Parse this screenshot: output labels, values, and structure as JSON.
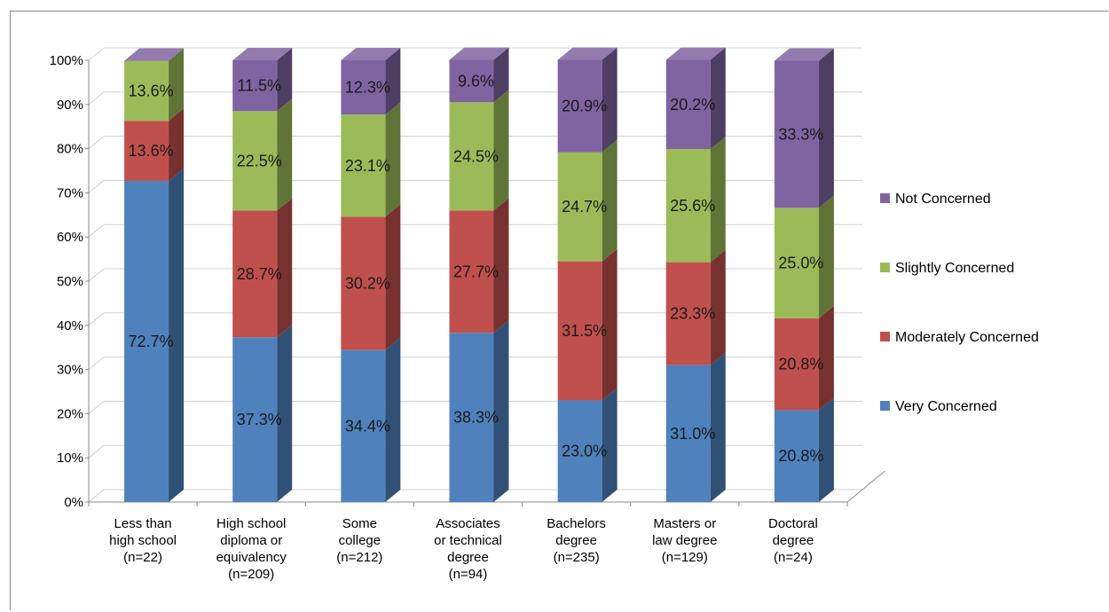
{
  "chart_data": {
    "type": "bar",
    "stacked": true,
    "percent_stacked": true,
    "three_d": true,
    "title": "",
    "xlabel": "",
    "ylabel": "",
    "ylim": [
      0,
      100
    ],
    "y_ticks": [
      "0%",
      "10%",
      "20%",
      "30%",
      "40%",
      "50%",
      "60%",
      "70%",
      "80%",
      "90%",
      "100%"
    ],
    "grid": true,
    "legend_position": "right",
    "categories": [
      [
        "Less than",
        "high school",
        "(n=22)"
      ],
      [
        "High school",
        "diploma or",
        "equivalency",
        "(n=209)"
      ],
      [
        "Some",
        "college",
        "(n=212)"
      ],
      [
        "Associates",
        "or technical",
        "degree",
        "(n=94)"
      ],
      [
        "Bachelors",
        "degree",
        "(n=235)"
      ],
      [
        "Masters or",
        "law degree",
        "(n=129)"
      ],
      [
        "Doctoral",
        "degree",
        "(n=24)"
      ]
    ],
    "series": [
      {
        "name": "Very Concerned",
        "color": "#4F81BD",
        "values": [
          72.7,
          37.3,
          34.4,
          38.3,
          23.0,
          31.0,
          20.8
        ],
        "labels": [
          "72.7%",
          "37.3%",
          "34.4%",
          "38.3%",
          "23.0%",
          "31.0%",
          "20.8%"
        ]
      },
      {
        "name": "Moderately Concerned",
        "color": "#C0504D",
        "values": [
          13.6,
          28.7,
          30.2,
          27.7,
          31.5,
          23.3,
          20.8
        ],
        "labels": [
          "13.6%",
          "28.7%",
          "30.2%",
          "27.7%",
          "31.5%",
          "23.3%",
          "20.8%"
        ]
      },
      {
        "name": "Slightly Concerned",
        "color": "#9BBB59",
        "values": [
          13.6,
          22.5,
          23.1,
          24.5,
          24.7,
          25.6,
          25.0
        ],
        "labels": [
          "13.6%",
          "22.5%",
          "23.1%",
          "24.5%",
          "24.7%",
          "25.6%",
          "25.0%"
        ]
      },
      {
        "name": "Not Concerned",
        "color": "#8064A2",
        "values": [
          0,
          11.5,
          12.3,
          9.6,
          20.9,
          20.2,
          33.3
        ],
        "labels": [
          "",
          "11.5%",
          "12.3%",
          "9.6%",
          "20.9%",
          "20.2%",
          "33.3%"
        ]
      }
    ],
    "legend_order": [
      "Not Concerned",
      "Slightly Concerned",
      "Moderately Concerned",
      "Very Concerned"
    ]
  }
}
